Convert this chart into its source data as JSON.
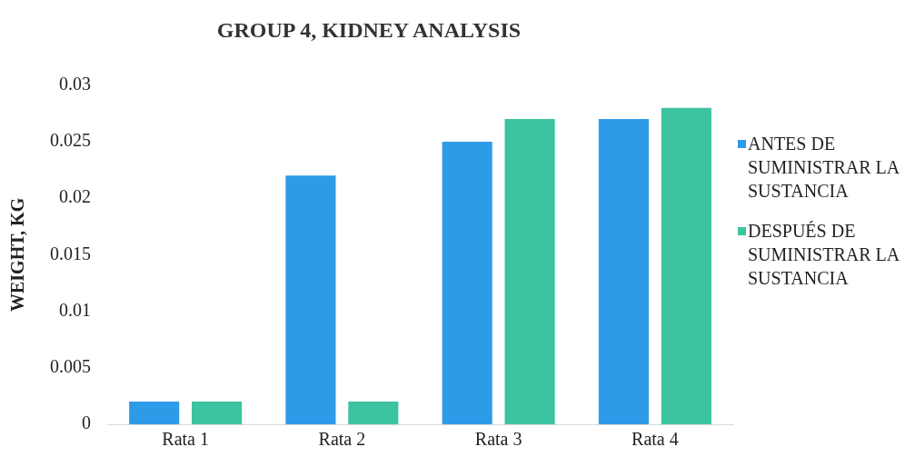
{
  "chart_data": {
    "type": "bar",
    "title": "GROUP 4, KIDNEY ANALYSIS",
    "ylabel": "WEIGHT, KG",
    "categories": [
      "Rata 1",
      "Rata 2",
      "Rata 3",
      "Rata 4"
    ],
    "series": [
      {
        "name": "ANTES DE SUMINISTRAR LA SUSTANCIA",
        "color": "#2e9be8",
        "values": [
          0.002,
          0.022,
          0.025,
          0.027
        ]
      },
      {
        "name": "DESPUÉS DE SUMINISTRAR LA SUSTANCIA",
        "color": "#3cc3a0",
        "values": [
          0.002,
          0.002,
          0.027,
          0.028
        ]
      }
    ],
    "ylim": [
      0,
      0.03
    ],
    "yticks": [
      0,
      0.005,
      0.01,
      0.015,
      0.02,
      0.025,
      0.03
    ],
    "grid": false,
    "legend": "right"
  }
}
